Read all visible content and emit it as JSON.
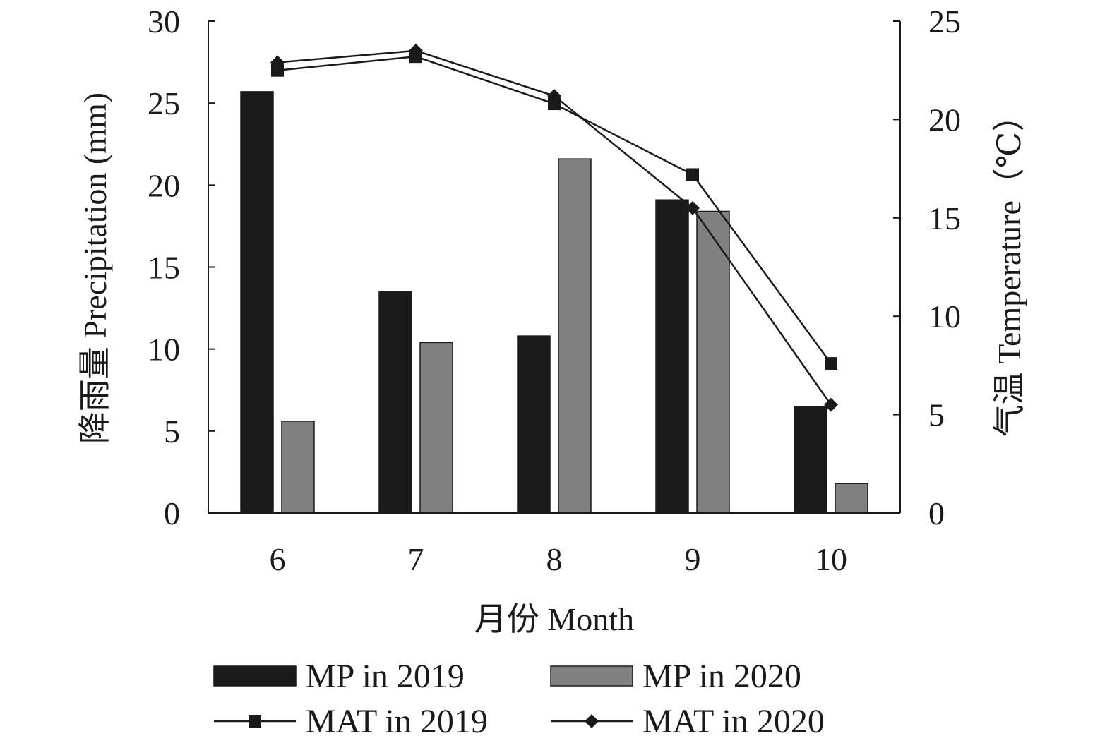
{
  "chart_data": {
    "type": "bar+line",
    "categories": [
      "6",
      "7",
      "8",
      "9",
      "10"
    ],
    "xlabel": "月份 Month",
    "ylabel_left": "降雨量 Precipitation (mm)",
    "ylabel_right": "气温 Temperature（℃）",
    "ylim_left": [
      0,
      30
    ],
    "ylim_right": [
      0,
      25
    ],
    "yticks_left": [
      "0",
      "5",
      "10",
      "15",
      "20",
      "25",
      "30"
    ],
    "yticks_right": [
      "0",
      "5",
      "10",
      "15",
      "20",
      "25"
    ],
    "grid": false,
    "legend_placement": "bottom",
    "bar_series": [
      {
        "name": "MP in 2019",
        "values": [
          25.7,
          13.5,
          10.8,
          19.1,
          6.5
        ],
        "color": "#1a1a1a"
      },
      {
        "name": "MP in 2020",
        "values": [
          5.6,
          10.4,
          21.6,
          18.4,
          1.8
        ],
        "color": "#808080"
      }
    ],
    "line_series": [
      {
        "name": "MAT in 2019",
        "values": [
          22.5,
          23.2,
          20.8,
          17.2,
          7.6
        ],
        "marker": "square",
        "color": "#1a1a1a"
      },
      {
        "name": "MAT in 2020",
        "values": [
          22.9,
          23.5,
          21.2,
          15.5,
          5.5
        ],
        "marker": "diamond",
        "color": "#1a1a1a"
      }
    ]
  }
}
